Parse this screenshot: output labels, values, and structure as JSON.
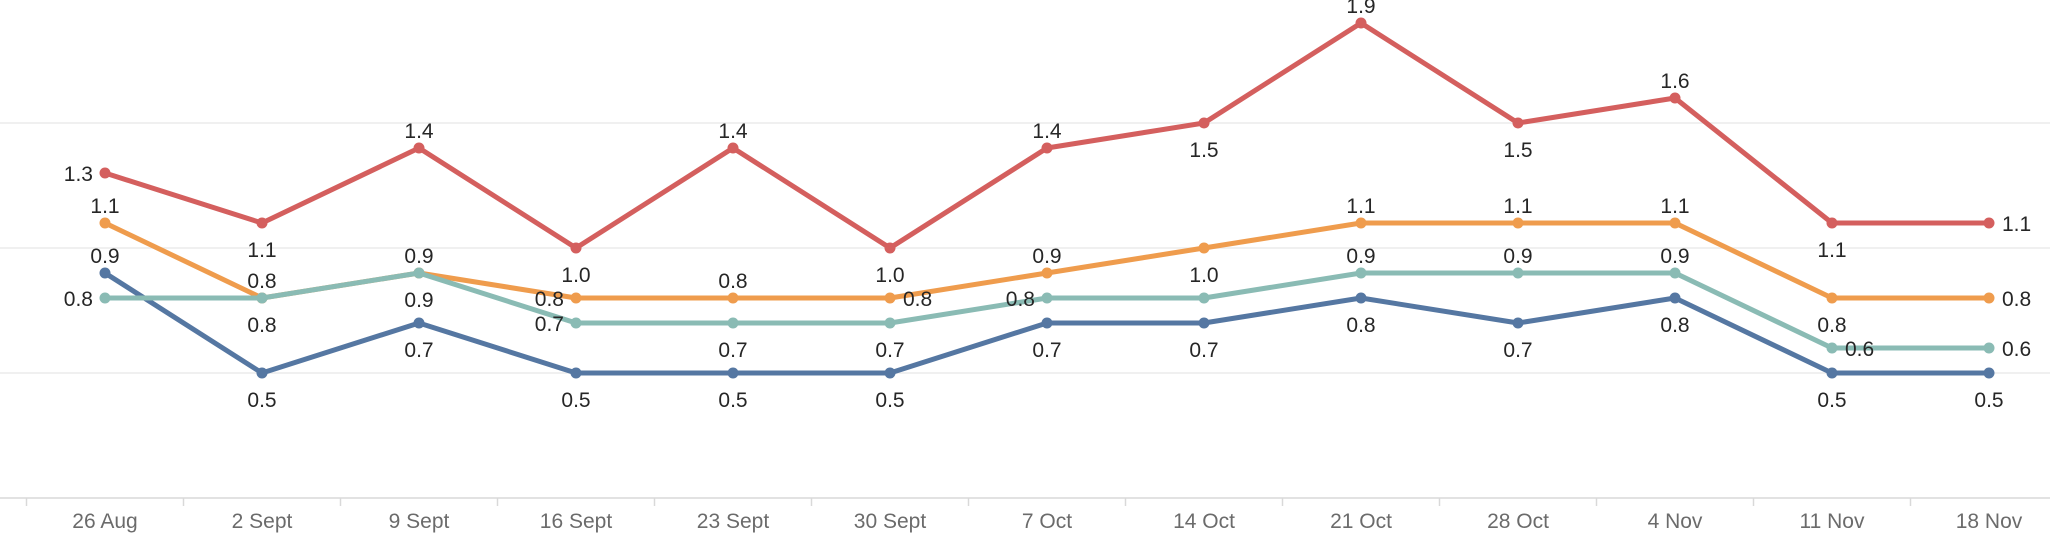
{
  "chart_data": {
    "type": "line",
    "title": "",
    "xlabel": "",
    "ylabel": "",
    "legend": "none",
    "grid": "on",
    "ylim": [
      0,
      2.05
    ],
    "gridline_values": [
      0.5,
      1.0,
      1.5
    ],
    "categories": [
      "26 Aug",
      "2 Sept",
      "9 Sept",
      "16 Sept",
      "23 Sept",
      "30 Sept",
      "7 Oct",
      "14 Oct",
      "21 Oct",
      "28 Oct",
      "4 Nov",
      "11 Nov",
      "18 Nov"
    ],
    "series": [
      {
        "name": "series-red",
        "color": "#d45f5e",
        "values": [
          1.3,
          1.1,
          1.4,
          1.0,
          1.4,
          1.0,
          1.4,
          1.5,
          1.9,
          1.5,
          1.6,
          1.1,
          1.1
        ],
        "point_labels": [
          "1.3",
          "1.1",
          "1.4",
          "1.0",
          "1.4",
          "1.0",
          "1.4",
          "1.5",
          "1.9",
          "1.5",
          "1.6",
          "1.1",
          "1.1"
        ],
        "label_positions": [
          "left",
          "below",
          "above",
          "below",
          "above",
          "below",
          "above",
          "below",
          "above",
          "below",
          "above",
          "below",
          "right"
        ]
      },
      {
        "name": "series-orange",
        "color": "#ef9c4d",
        "values": [
          1.1,
          0.8,
          0.9,
          0.8,
          0.8,
          0.8,
          0.9,
          1.0,
          1.1,
          1.1,
          1.1,
          0.8,
          0.8
        ],
        "point_labels": [
          "1.1",
          "0.8",
          "0.9",
          "0.8",
          "0.8",
          "0.8",
          "0.9",
          "1.0",
          "1.1",
          "1.1",
          "1.1",
          "0.8",
          "0.8"
        ],
        "label_positions": [
          "above",
          "above",
          "above",
          "left",
          "above",
          "right",
          "above",
          "below",
          "above",
          "above",
          "above",
          "below",
          "right"
        ]
      },
      {
        "name": "series-teal",
        "color": "#8abbb4",
        "values": [
          0.8,
          0.8,
          0.9,
          0.7,
          0.7,
          0.7,
          0.8,
          0.8,
          0.9,
          0.9,
          0.9,
          0.6,
          0.6
        ],
        "point_labels": [
          "0.8",
          "0.8",
          "0.9",
          "0.7",
          "0.7",
          "0.7",
          "0.8",
          "",
          "0.9",
          "0.9",
          "0.9",
          "0.6",
          "0.6"
        ],
        "label_positions": [
          "left",
          "below",
          "below",
          "left",
          "below",
          "below",
          "left",
          "none",
          "above",
          "above",
          "above",
          "right",
          "right"
        ]
      },
      {
        "name": "series-blue",
        "color": "#5577a2",
        "values": [
          0.9,
          0.5,
          0.7,
          0.5,
          0.5,
          0.5,
          0.7,
          0.7,
          0.8,
          0.7,
          0.8,
          0.5,
          0.5
        ],
        "point_labels": [
          "0.9",
          "0.5",
          "0.7",
          "0.5",
          "0.5",
          "0.5",
          "0.7",
          "0.7",
          "0.8",
          "0.7",
          "0.8",
          "0.5",
          "0.5"
        ],
        "label_positions": [
          "above",
          "below",
          "below",
          "below",
          "below",
          "below",
          "below",
          "below",
          "below",
          "below",
          "below",
          "below",
          "below"
        ]
      }
    ],
    "colors": {
      "grid_line": "#ececec",
      "axis_line": "#d9d9d9",
      "value_label": "#262626",
      "date_label": "#6b6b6b",
      "background": "#ffffff"
    }
  }
}
